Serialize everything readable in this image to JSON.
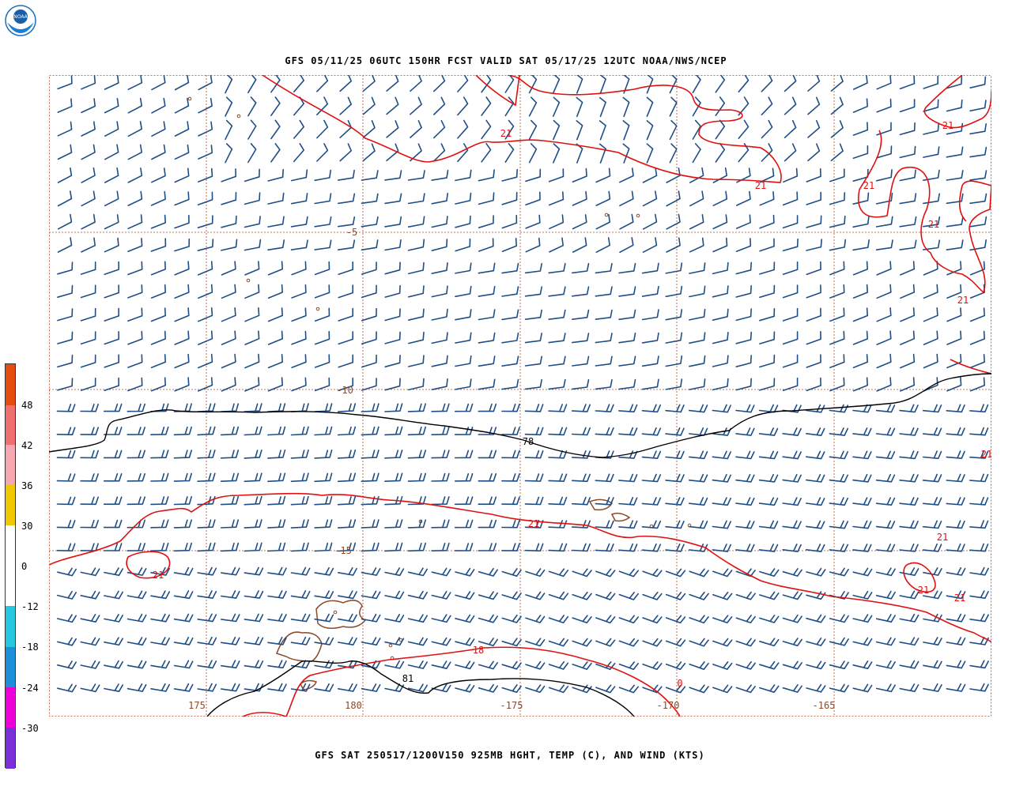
{
  "header": {
    "title": "GFS 05/11/25 06UTC 150HR FCST VALID SAT 05/17/25 12UTC NOAA/NWS/NCEP",
    "logo_text": "NOAA"
  },
  "footer": {
    "caption": "GFS SAT 250517/1200V150 925MB HGHT, TEMP (C), AND WIND (KTS)"
  },
  "colorbar": {
    "segments": [
      {
        "color": "#7a30d8"
      },
      {
        "color": "#ee00d8"
      },
      {
        "color": "#1b8fd8"
      },
      {
        "color": "#25c8e0"
      },
      {
        "color": "#ffffff"
      },
      {
        "color": "#ffffff"
      },
      {
        "color": "#f0c800"
      },
      {
        "color": "#f6a8b0"
      },
      {
        "color": "#f07070"
      },
      {
        "color": "#e44c10"
      }
    ],
    "ticks": [
      "-30",
      "-24",
      "-18",
      "-12",
      "0",
      "30",
      "36",
      "42",
      "48"
    ]
  },
  "map": {
    "lat_labels": [
      "-5",
      "-10",
      "-15"
    ],
    "lon_labels": [
      "175",
      "180",
      "-175",
      "-170",
      "-165"
    ],
    "temp_labels": [
      "21",
      "21",
      "21",
      "21",
      "21",
      "21",
      "21",
      "21",
      "21",
      "21",
      "21",
      "21",
      "18",
      "0"
    ],
    "height_labels": [
      "78",
      "81"
    ],
    "colors": {
      "wind_barb": "#1f4e87",
      "temp_contour": "#e01010",
      "height_contour": "#000000",
      "coastline": "#8b4a2a",
      "grid": "#b04a2a"
    }
  }
}
